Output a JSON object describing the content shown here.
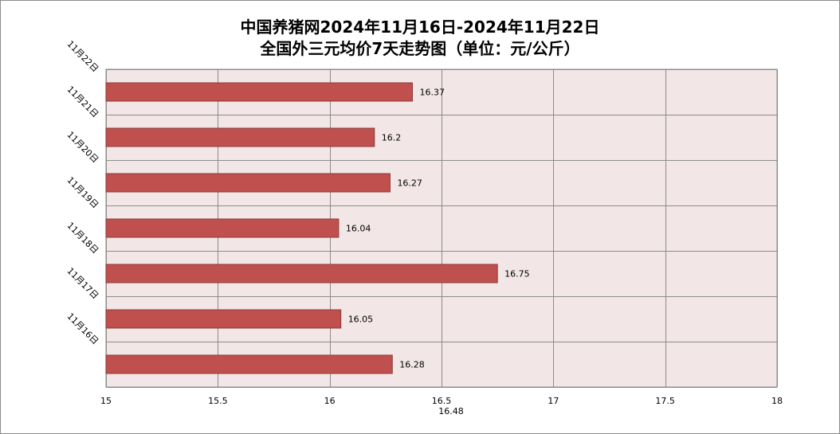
{
  "title_line1": "中国养猪网2024年11月16日-2024年11月22日",
  "title_line2": "全国外三元均价7天走势图（单位：元/公斤）",
  "chart_data": {
    "type": "bar",
    "orientation": "horizontal",
    "categories": [
      "11月16日",
      "11月17日",
      "11月18日",
      "11月19日",
      "11月20日",
      "11月21日",
      "11月22日"
    ],
    "values": [
      16.28,
      16.05,
      16.75,
      16.04,
      16.27,
      16.2,
      16.37
    ],
    "value_labels": [
      "16.28",
      "16.05",
      "16.75",
      "16.04",
      "16.27",
      "16.2",
      "16.37"
    ],
    "xlim": [
      15,
      18
    ],
    "x_ticks": [
      15,
      15.5,
      16,
      16.5,
      17,
      17.5,
      18
    ],
    "x_tick_labels": [
      "15",
      "15.5",
      "16",
      "16.5",
      "17",
      "17.5",
      "18"
    ],
    "axis_annotation": "16.48",
    "grid": true,
    "bar_color": "#c0504d",
    "plot_background": "#f2e6e6",
    "grid_color": "#8c8c8c"
  }
}
